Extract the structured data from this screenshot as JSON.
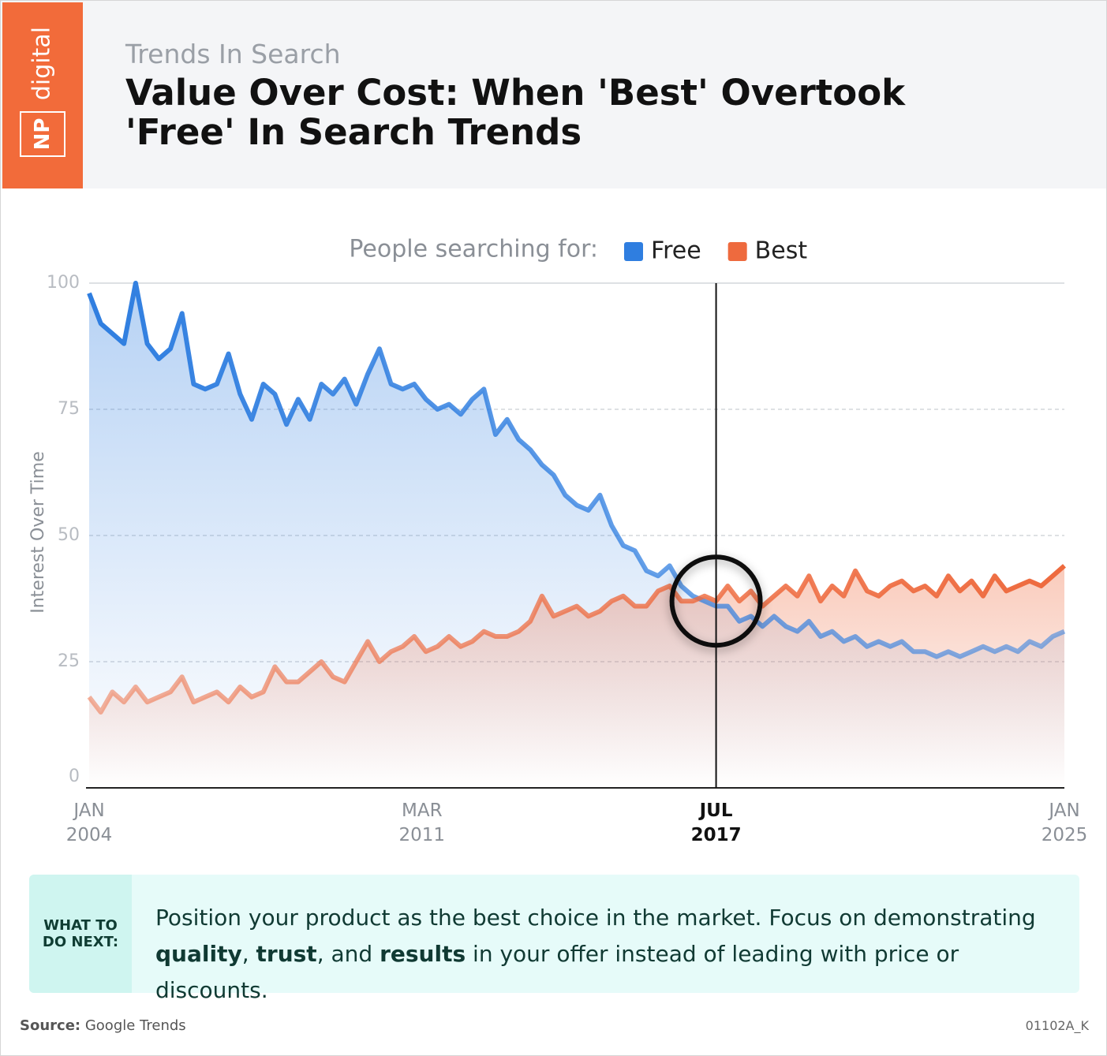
{
  "logo": {
    "line1": "NP",
    "line2": "digital"
  },
  "header": {
    "kicker": "Trends In Search",
    "title": "Value Over Cost: When 'Best' Overtook 'Free' In Search Trends"
  },
  "chart_data": {
    "type": "line",
    "legend_title": "People searching for:",
    "y_label": "Interest Over Time",
    "x": [
      "2004-01",
      "2004-04",
      "2004-07",
      "2004-10",
      "2005-01",
      "2005-04",
      "2005-07",
      "2005-10",
      "2006-01",
      "2006-04",
      "2006-07",
      "2006-10",
      "2007-01",
      "2007-04",
      "2007-07",
      "2007-10",
      "2008-01",
      "2008-04",
      "2008-07",
      "2008-10",
      "2009-01",
      "2009-04",
      "2009-07",
      "2009-10",
      "2010-01",
      "2010-04",
      "2010-07",
      "2010-10",
      "2011-01",
      "2011-04",
      "2011-07",
      "2011-10",
      "2012-01",
      "2012-04",
      "2012-07",
      "2012-10",
      "2013-01",
      "2013-04",
      "2013-07",
      "2013-10",
      "2014-01",
      "2014-04",
      "2014-07",
      "2014-10",
      "2015-01",
      "2015-04",
      "2015-07",
      "2015-10",
      "2016-01",
      "2016-04",
      "2016-07",
      "2016-10",
      "2017-01",
      "2017-04",
      "2017-07",
      "2017-10",
      "2018-01",
      "2018-04",
      "2018-07",
      "2018-10",
      "2019-01",
      "2019-04",
      "2019-07",
      "2019-10",
      "2020-01",
      "2020-04",
      "2020-07",
      "2020-10",
      "2021-01",
      "2021-04",
      "2021-07",
      "2021-10",
      "2022-01",
      "2022-04",
      "2022-07",
      "2022-10",
      "2023-01",
      "2023-04",
      "2023-07",
      "2023-10",
      "2024-01",
      "2024-04",
      "2024-07",
      "2024-10",
      "2025-01"
    ],
    "series": [
      {
        "name": "Free",
        "color": "#2f7ee0",
        "values": [
          98,
          92,
          90,
          88,
          100,
          88,
          85,
          87,
          94,
          80,
          79,
          80,
          86,
          78,
          73,
          80,
          78,
          72,
          77,
          73,
          80,
          78,
          81,
          76,
          82,
          87,
          80,
          79,
          80,
          77,
          75,
          76,
          74,
          77,
          79,
          70,
          73,
          69,
          67,
          64,
          62,
          58,
          56,
          55,
          58,
          52,
          48,
          47,
          43,
          42,
          44,
          40,
          38,
          37,
          36,
          36,
          33,
          34,
          32,
          34,
          32,
          31,
          33,
          30,
          31,
          29,
          30,
          28,
          29,
          28,
          29,
          27,
          27,
          26,
          27,
          26,
          27,
          28,
          27,
          28,
          27,
          29,
          28,
          30,
          31
        ]
      },
      {
        "name": "Best",
        "color": "#ee6a3e",
        "values": [
          18,
          15,
          19,
          17,
          20,
          17,
          18,
          19,
          22,
          17,
          18,
          19,
          17,
          20,
          18,
          19,
          24,
          21,
          21,
          23,
          25,
          22,
          21,
          25,
          29,
          25,
          27,
          28,
          30,
          27,
          28,
          30,
          28,
          29,
          31,
          30,
          30,
          31,
          33,
          38,
          34,
          35,
          36,
          34,
          35,
          37,
          38,
          36,
          36,
          39,
          40,
          37,
          37,
          38,
          37,
          40,
          37,
          39,
          36,
          38,
          40,
          38,
          42,
          37,
          40,
          38,
          43,
          39,
          38,
          40,
          41,
          39,
          40,
          38,
          42,
          39,
          41,
          38,
          42,
          39,
          40,
          41,
          40,
          42,
          44
        ]
      }
    ],
    "xlim": [
      "2004-01",
      "2025-01"
    ],
    "xticks": [
      {
        "value": "2004-01",
        "label": "JAN 2004"
      },
      {
        "value": "2011-03",
        "label": "MAR 2011"
      },
      {
        "value": "2017-07",
        "label": "JUL 2017"
      },
      {
        "value": "2025-01",
        "label": "JAN 2025"
      }
    ],
    "highlight_x": "2017-07",
    "ylim": [
      0,
      100
    ],
    "yticks": [
      0,
      25,
      50,
      75,
      100
    ],
    "grid": true
  },
  "callout": {
    "label": "WHAT TO DO NEXT:",
    "segments": [
      {
        "text": "Position your product as the best choice in the market. Focus on demonstrating "
      },
      {
        "text": "quality",
        "bold": true
      },
      {
        "text": ", "
      },
      {
        "text": "trust",
        "bold": true
      },
      {
        "text": ", and "
      },
      {
        "text": "results",
        "bold": true
      },
      {
        "text": " in your offer instead of leading with price or discounts."
      }
    ]
  },
  "footer": {
    "source_label": "Source:",
    "source": "Google Trends",
    "code": "01102A_K"
  }
}
